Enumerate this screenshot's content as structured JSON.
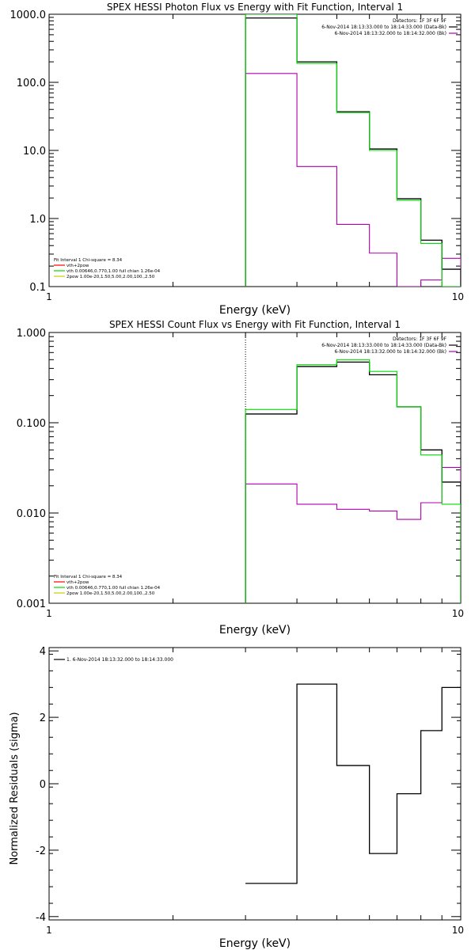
{
  "colors": {
    "data": "#000000",
    "background": "#b000b0",
    "fit": "#00dd00",
    "fit_vth": "#00dd00",
    "fit_2pow": "#cccc00",
    "fit_sum": "#ff0000",
    "marker": "#00aa00"
  },
  "chart_data": [
    {
      "type": "line",
      "id": "photon",
      "title": "SPEX HESSI Photon Flux vs Energy with Fit Function, Interval 1",
      "xlabel": "Energy (keV)",
      "ylabel": "",
      "xscale": "log",
      "yscale": "log",
      "xlim": [
        1,
        10
      ],
      "ylim": [
        0.1,
        1000
      ],
      "xticks": [
        1,
        10
      ],
      "xtick_labels": [
        "1",
        "10"
      ],
      "yticks": [
        0.1,
        1,
        10,
        100,
        1000
      ],
      "ytick_labels": [
        "0.1",
        "1.0",
        "10.0",
        "100.0",
        "1000.0"
      ],
      "marker_x": 3.0,
      "edges": [
        3.0,
        4.0,
        5.0,
        6.0,
        7.0,
        8.0,
        9.0,
        10.0
      ],
      "series": [
        {
          "name": "",
          "role": "data",
          "values": [
            880,
            200,
            37,
            10.5,
            1.95,
            0.48,
            0.18
          ]
        },
        {
          "name": "",
          "role": "fit",
          "values": [
            1000,
            190,
            36,
            10.0,
            1.85,
            0.43,
            0.1
          ]
        },
        {
          "name": "",
          "role": "background",
          "values": [
            135,
            5.8,
            0.82,
            0.31,
            0.1,
            0.125,
            0.26
          ]
        }
      ],
      "header_lines": [
        "Detectors: 1F 3F 6F 9F",
        "6-Nov-2014 18:13:33.000 to 18:14:33.000 (Data-Bk)",
        "6-Nov-2014 18:13:32.000 to 18:14:32.000 (Bk)"
      ],
      "legend_lines": [
        {
          "text": "Fit Interval 1    Chi-square = 8.34",
          "color_key": ""
        },
        {
          "text": "vth+2pow",
          "color_key": "fit_sum"
        },
        {
          "text": "vth 0.00646,0.770,1.00   full chian 1.26e-04",
          "color_key": "fit_vth"
        },
        {
          "text": "2pow 1.00e-20,1.50,5.00,2.00,100.,2.50",
          "color_key": "fit_2pow"
        }
      ]
    },
    {
      "type": "line",
      "id": "count",
      "title": "SPEX HESSI Count Flux vs Energy with Fit Function, Interval 1",
      "xlabel": "Energy (keV)",
      "ylabel": "",
      "xscale": "log",
      "yscale": "log",
      "xlim": [
        1,
        10
      ],
      "ylim": [
        0.001,
        1
      ],
      "xticks": [
        1,
        10
      ],
      "xtick_labels": [
        "1",
        "10"
      ],
      "yticks": [
        0.001,
        0.01,
        0.1,
        1
      ],
      "ytick_labels": [
        "0.001",
        "0.010",
        "0.100",
        "1.000"
      ],
      "marker_x": 3.0,
      "edges": [
        3.0,
        4.0,
        5.0,
        6.0,
        7.0,
        8.0,
        9.0,
        10.0
      ],
      "series": [
        {
          "name": "",
          "role": "data",
          "values": [
            0.125,
            0.42,
            0.47,
            0.34,
            0.15,
            0.05,
            0.022
          ]
        },
        {
          "name": "",
          "role": "fit",
          "values": [
            0.14,
            0.44,
            0.5,
            0.37,
            0.15,
            0.044,
            0.0125
          ]
        },
        {
          "name": "",
          "role": "background",
          "values": [
            0.021,
            0.0125,
            0.011,
            0.0105,
            0.0085,
            0.013,
            0.032
          ]
        }
      ],
      "header_lines": [
        "Detectors: 1F 3F 6F 9F",
        "6-Nov-2014 18:13:33.000 to 18:14:33.000 (Data-Bk)",
        "6-Nov-2014 18:13:32.000 to 18:14:32.000 (Bk)"
      ],
      "legend_lines": [
        {
          "text": "Fit Interval 1    Chi-square = 8.34",
          "color_key": ""
        },
        {
          "text": "vth+2pow",
          "color_key": "fit_sum"
        },
        {
          "text": "vth 0.00646,0.770,1.00   full chian 1.26e-04",
          "color_key": "fit_vth"
        },
        {
          "text": "2pow 1.00e-20,1.50,5.00,2.00,100.,2.50",
          "color_key": "fit_2pow"
        }
      ]
    },
    {
      "type": "line",
      "id": "residuals",
      "title": "",
      "xlabel": "Energy (keV)",
      "ylabel": "Normalized Residuals (sigma)",
      "xscale": "log",
      "yscale": "linear",
      "xlim": [
        1,
        10
      ],
      "ylim": [
        -4.1,
        4.1
      ],
      "xticks": [
        1,
        10
      ],
      "xtick_labels": [
        "1",
        "10"
      ],
      "yticks": [
        -4,
        -2,
        0,
        2,
        4
      ],
      "ytick_labels": [
        "-4",
        "-2",
        "0",
        "2",
        "4"
      ],
      "edges": [
        3.0,
        4.0,
        5.0,
        6.0,
        7.0,
        8.0,
        9.0,
        10.0
      ],
      "series": [
        {
          "name": "",
          "role": "data",
          "values": [
            -3.0,
            3.0,
            0.55,
            -2.1,
            -0.3,
            1.6,
            2.9
          ]
        }
      ],
      "legend_lines": [
        {
          "text": "1.  6-Nov-2014 18:13:32.000 to 18:14:33.000",
          "color_key": "data"
        }
      ]
    }
  ]
}
